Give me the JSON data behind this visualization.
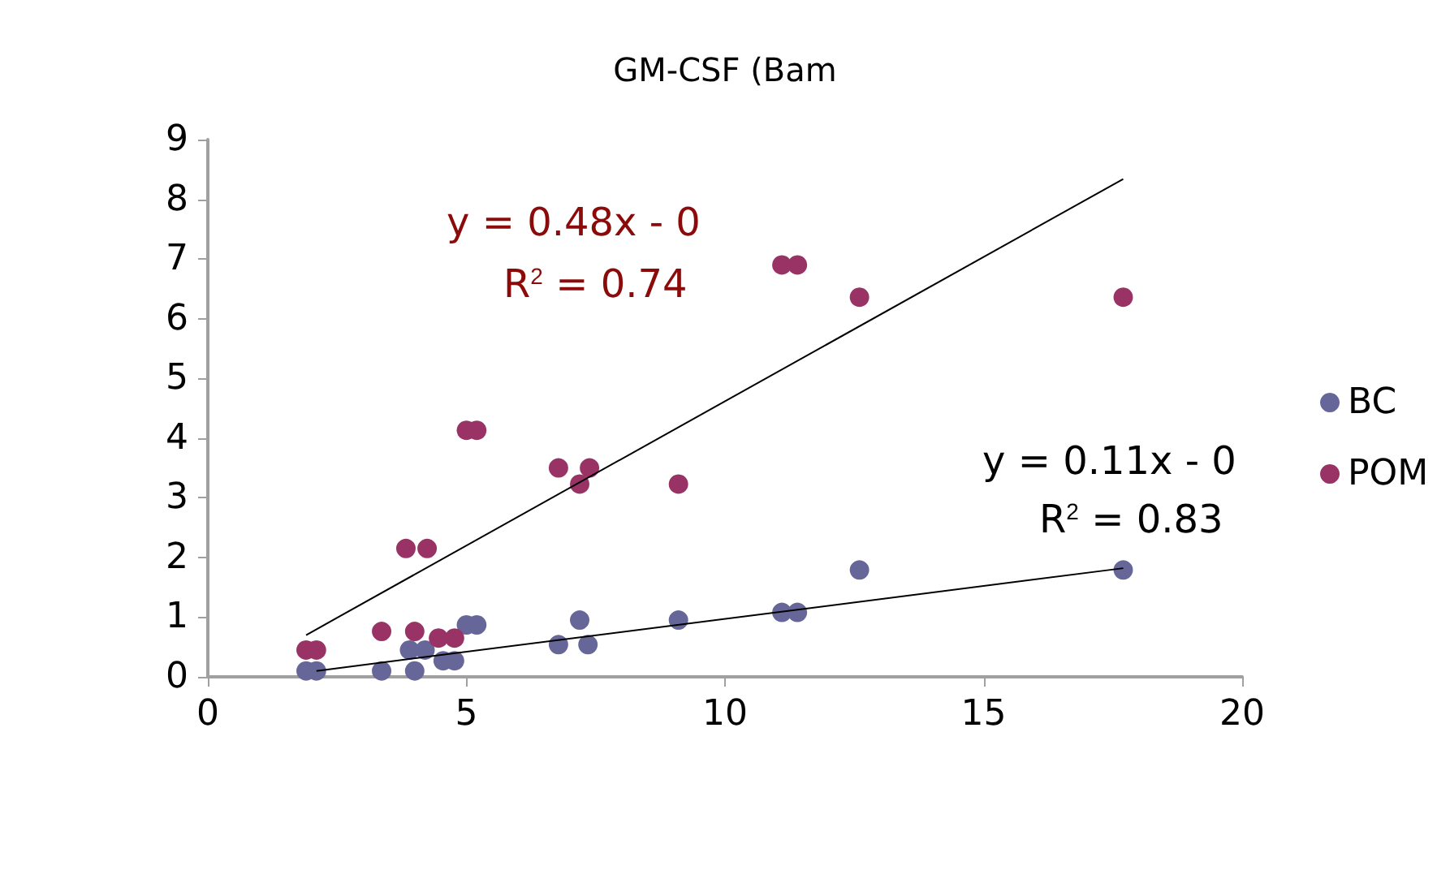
{
  "chart_data": {
    "type": "scatter",
    "title": "GM-CSF (Bam",
    "series": [
      {
        "name": "BC",
        "color": "#666699",
        "marker": "circle",
        "x": [
          1.9,
          2.1,
          3.36,
          4.0,
          3.9,
          4.2,
          4.55,
          4.77,
          5.0,
          5.2,
          6.78,
          7.19,
          7.35,
          9.1,
          11.1,
          11.4,
          12.6,
          17.7
        ],
        "values": [
          0.1,
          0.1,
          0.1,
          0.1,
          0.45,
          0.45,
          0.27,
          0.27,
          0.87,
          0.87,
          0.54,
          0.95,
          0.54,
          0.95,
          1.08,
          1.08,
          1.79,
          1.79
        ]
      },
      {
        "name": "POM",
        "color": "#993366",
        "marker": "circle",
        "x": [
          1.9,
          2.1,
          3.36,
          4.0,
          4.46,
          4.77,
          3.83,
          4.24,
          5.0,
          5.2,
          6.78,
          7.19,
          7.38,
          9.1,
          11.1,
          11.4,
          12.6,
          17.7
        ],
        "values": [
          0.45,
          0.45,
          0.76,
          0.76,
          0.65,
          0.65,
          2.15,
          2.15,
          4.13,
          4.13,
          3.5,
          3.23,
          3.5,
          3.23,
          6.9,
          6.9,
          6.36,
          6.36
        ]
      },
      {
        "type": "line",
        "color": "#000000",
        "marker": "none",
        "x": [
          1.9,
          17.7
        ],
        "values": [
          0.7,
          8.34
        ]
      },
      {
        "type": "line",
        "color": "#000000",
        "marker": "none",
        "x": [
          2.1,
          17.7
        ],
        "values": [
          0.1,
          1.82
        ]
      }
    ],
    "annotations": [
      "y = 0.48x - 0",
      "R$^{2}$ = 0.74",
      "y = 0.11x - 0",
      "R$^{2}$ = 0.83"
    ],
    "xlim": [
      0,
      20
    ],
    "xticks": [
      0,
      5,
      10,
      15,
      20
    ],
    "ylim": [
      0,
      9
    ],
    "yticks": [
      0,
      1,
      2,
      3,
      4,
      5,
      6,
      7,
      8,
      9
    ],
    "grid": false,
    "legend": "right"
  }
}
